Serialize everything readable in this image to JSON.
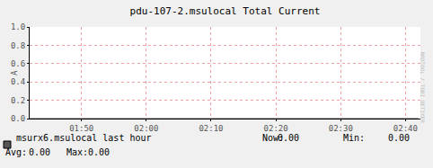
{
  "chart_data": {
    "type": "line",
    "title": "pdu-107-2.msulocal Total Current",
    "y_label": "A",
    "x": [
      102,
      107,
      112,
      117,
      122,
      127,
      132,
      137,
      142,
      147,
      152,
      157,
      162
    ],
    "series": [
      {
        "name": "msurx6.msulocal last hour",
        "color": "#555555",
        "values": [
          0,
          0,
          0,
          0,
          0,
          0,
          0,
          0,
          0,
          0,
          0,
          0,
          0
        ]
      }
    ],
    "xlim": [
      102,
      162.3
    ],
    "xticks": [
      {
        "value": 110,
        "label": "01:50"
      },
      {
        "value": 120,
        "label": "02:00"
      },
      {
        "value": 130,
        "label": "02:10"
      },
      {
        "value": 140,
        "label": "02:20"
      },
      {
        "value": 150,
        "label": "02:30"
      },
      {
        "value": 160,
        "label": "02:40"
      }
    ],
    "ylim": [
      0,
      1
    ],
    "yticks": [
      {
        "value": 0,
        "label": "0.0"
      },
      {
        "value": 0.2,
        "label": "0.2"
      },
      {
        "value": 0.4,
        "label": "0.4"
      },
      {
        "value": 0.6,
        "label": "0.6"
      },
      {
        "value": 0.8,
        "label": "0.8"
      },
      {
        "value": 1,
        "label": "1.0"
      }
    ],
    "grid": true,
    "stats": [
      {
        "name": "Now:",
        "value": 0,
        "label": "0.00"
      },
      {
        "name": "Min:",
        "value": 0,
        "label": "0.00"
      },
      {
        "name": "Avg:",
        "value": 0,
        "label": "0.00"
      },
      {
        "name": "Max:",
        "value": 0,
        "label": "0.00"
      }
    ],
    "annotations": [
      "RRDTOOL / TOBI OETIKER"
    ]
  }
}
